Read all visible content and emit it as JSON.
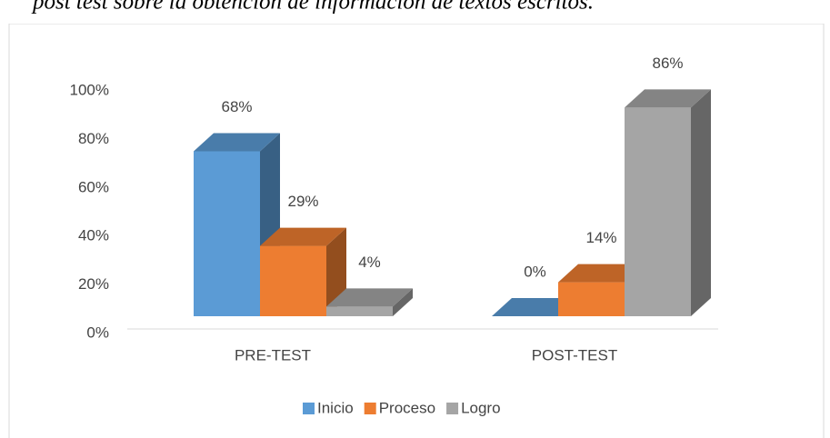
{
  "chart_data": {
    "type": "bar3d",
    "title": "post test sobre la obtención de información de textos escritos.",
    "categories": [
      "PRE-TEST",
      "POST-TEST"
    ],
    "series": [
      {
        "name": "Inicio",
        "color": "#5b9bd5",
        "values": [
          68,
          0
        ],
        "value_labels": [
          "68%",
          "0%"
        ]
      },
      {
        "name": "Proceso",
        "color": "#ed7d31",
        "values": [
          29,
          14
        ],
        "value_labels": [
          "29%",
          "14%"
        ]
      },
      {
        "name": "Logro",
        "color": "#a5a5a5",
        "values": [
          4,
          86
        ],
        "value_labels": [
          "4%",
          "86%"
        ]
      }
    ],
    "ylim": [
      0,
      100
    ],
    "yticks": [
      {
        "value": 0,
        "label": "0%"
      },
      {
        "value": 20,
        "label": "20%"
      },
      {
        "value": 40,
        "label": "40%"
      },
      {
        "value": 60,
        "label": "60%"
      },
      {
        "value": 80,
        "label": "80%"
      },
      {
        "value": 100,
        "label": "100%"
      }
    ],
    "legend": "bottom"
  }
}
